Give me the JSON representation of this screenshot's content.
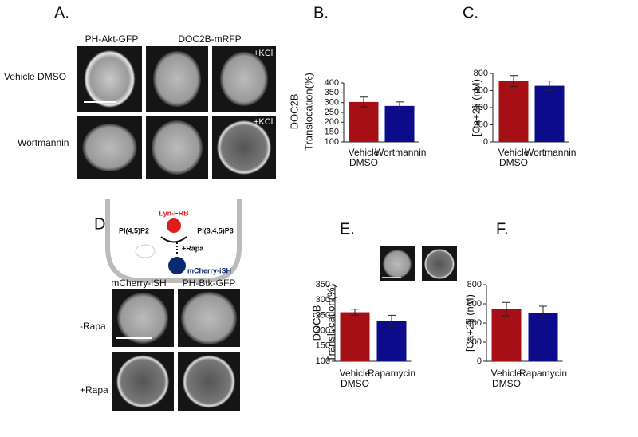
{
  "panels": {
    "A": {
      "label": "A.",
      "columns": [
        "PH-Akt-GFP",
        "DOC2B-mRFP"
      ],
      "rows": [
        "Vehicle DMSO",
        "Wortmannin"
      ],
      "annotations": [
        "+KCl",
        "+KCl"
      ]
    },
    "D": {
      "label": "D.",
      "diagram": {
        "lyn": "Lyn-FRB",
        "pip2": "PI(4,5)P2",
        "pip3": "PI(3,4,5)P3",
        "rapa": "+Rapa",
        "ish": "mCherry-iSH"
      },
      "columns": [
        "mCherry-iSH",
        "PH-Btk-GFP"
      ],
      "rows": [
        "-Rapa",
        "+Rapa"
      ]
    }
  },
  "chart_data": [
    {
      "type": "bar",
      "panel_label": "B.",
      "ylabel": [
        "DOC2B",
        "Translocation(%)"
      ],
      "categories": [
        "Vehicle DMSO",
        "Wortmannin"
      ],
      "values": [
        303,
        283
      ],
      "errors": [
        25,
        20
      ],
      "colors": [
        "#a50f15",
        "#0b0b8c"
      ],
      "ylim": [
        100,
        400
      ],
      "yticks": [
        100,
        150,
        200,
        250,
        300,
        350,
        400
      ]
    },
    {
      "type": "bar",
      "panel_label": "C.",
      "ylabel": "[Ca+2]i (nM)",
      "categories": [
        "Vehicle DMSO",
        "Wortmannin"
      ],
      "values": [
        710,
        655
      ],
      "errors": [
        65,
        55
      ],
      "colors": [
        "#a50f15",
        "#0b0b8c"
      ],
      "ylim": [
        0,
        800
      ],
      "yticks": [
        0,
        200,
        400,
        600,
        800
      ]
    },
    {
      "type": "bar",
      "panel_label": "E.",
      "ylabel": [
        "DOC2B",
        "Translocation(%)"
      ],
      "categories": [
        "Vehicle DMSO",
        "Rapamycin"
      ],
      "values": [
        260,
        232
      ],
      "errors": [
        10,
        18
      ],
      "colors": [
        "#a50f15",
        "#0b0b8c"
      ],
      "ylim": [
        100,
        350
      ],
      "yticks": [
        100,
        150,
        200,
        250,
        300,
        350
      ]
    },
    {
      "type": "bar",
      "panel_label": "F.",
      "ylabel": "[Ca+2]i (nM)",
      "categories": [
        "Vehicle DMSO",
        "Rapamycin"
      ],
      "values": [
        545,
        505
      ],
      "errors": [
        70,
        70
      ],
      "colors": [
        "#a50f15",
        "#0b0b8c"
      ],
      "ylim": [
        0,
        800
      ],
      "yticks": [
        0,
        200,
        400,
        600,
        800
      ]
    }
  ]
}
